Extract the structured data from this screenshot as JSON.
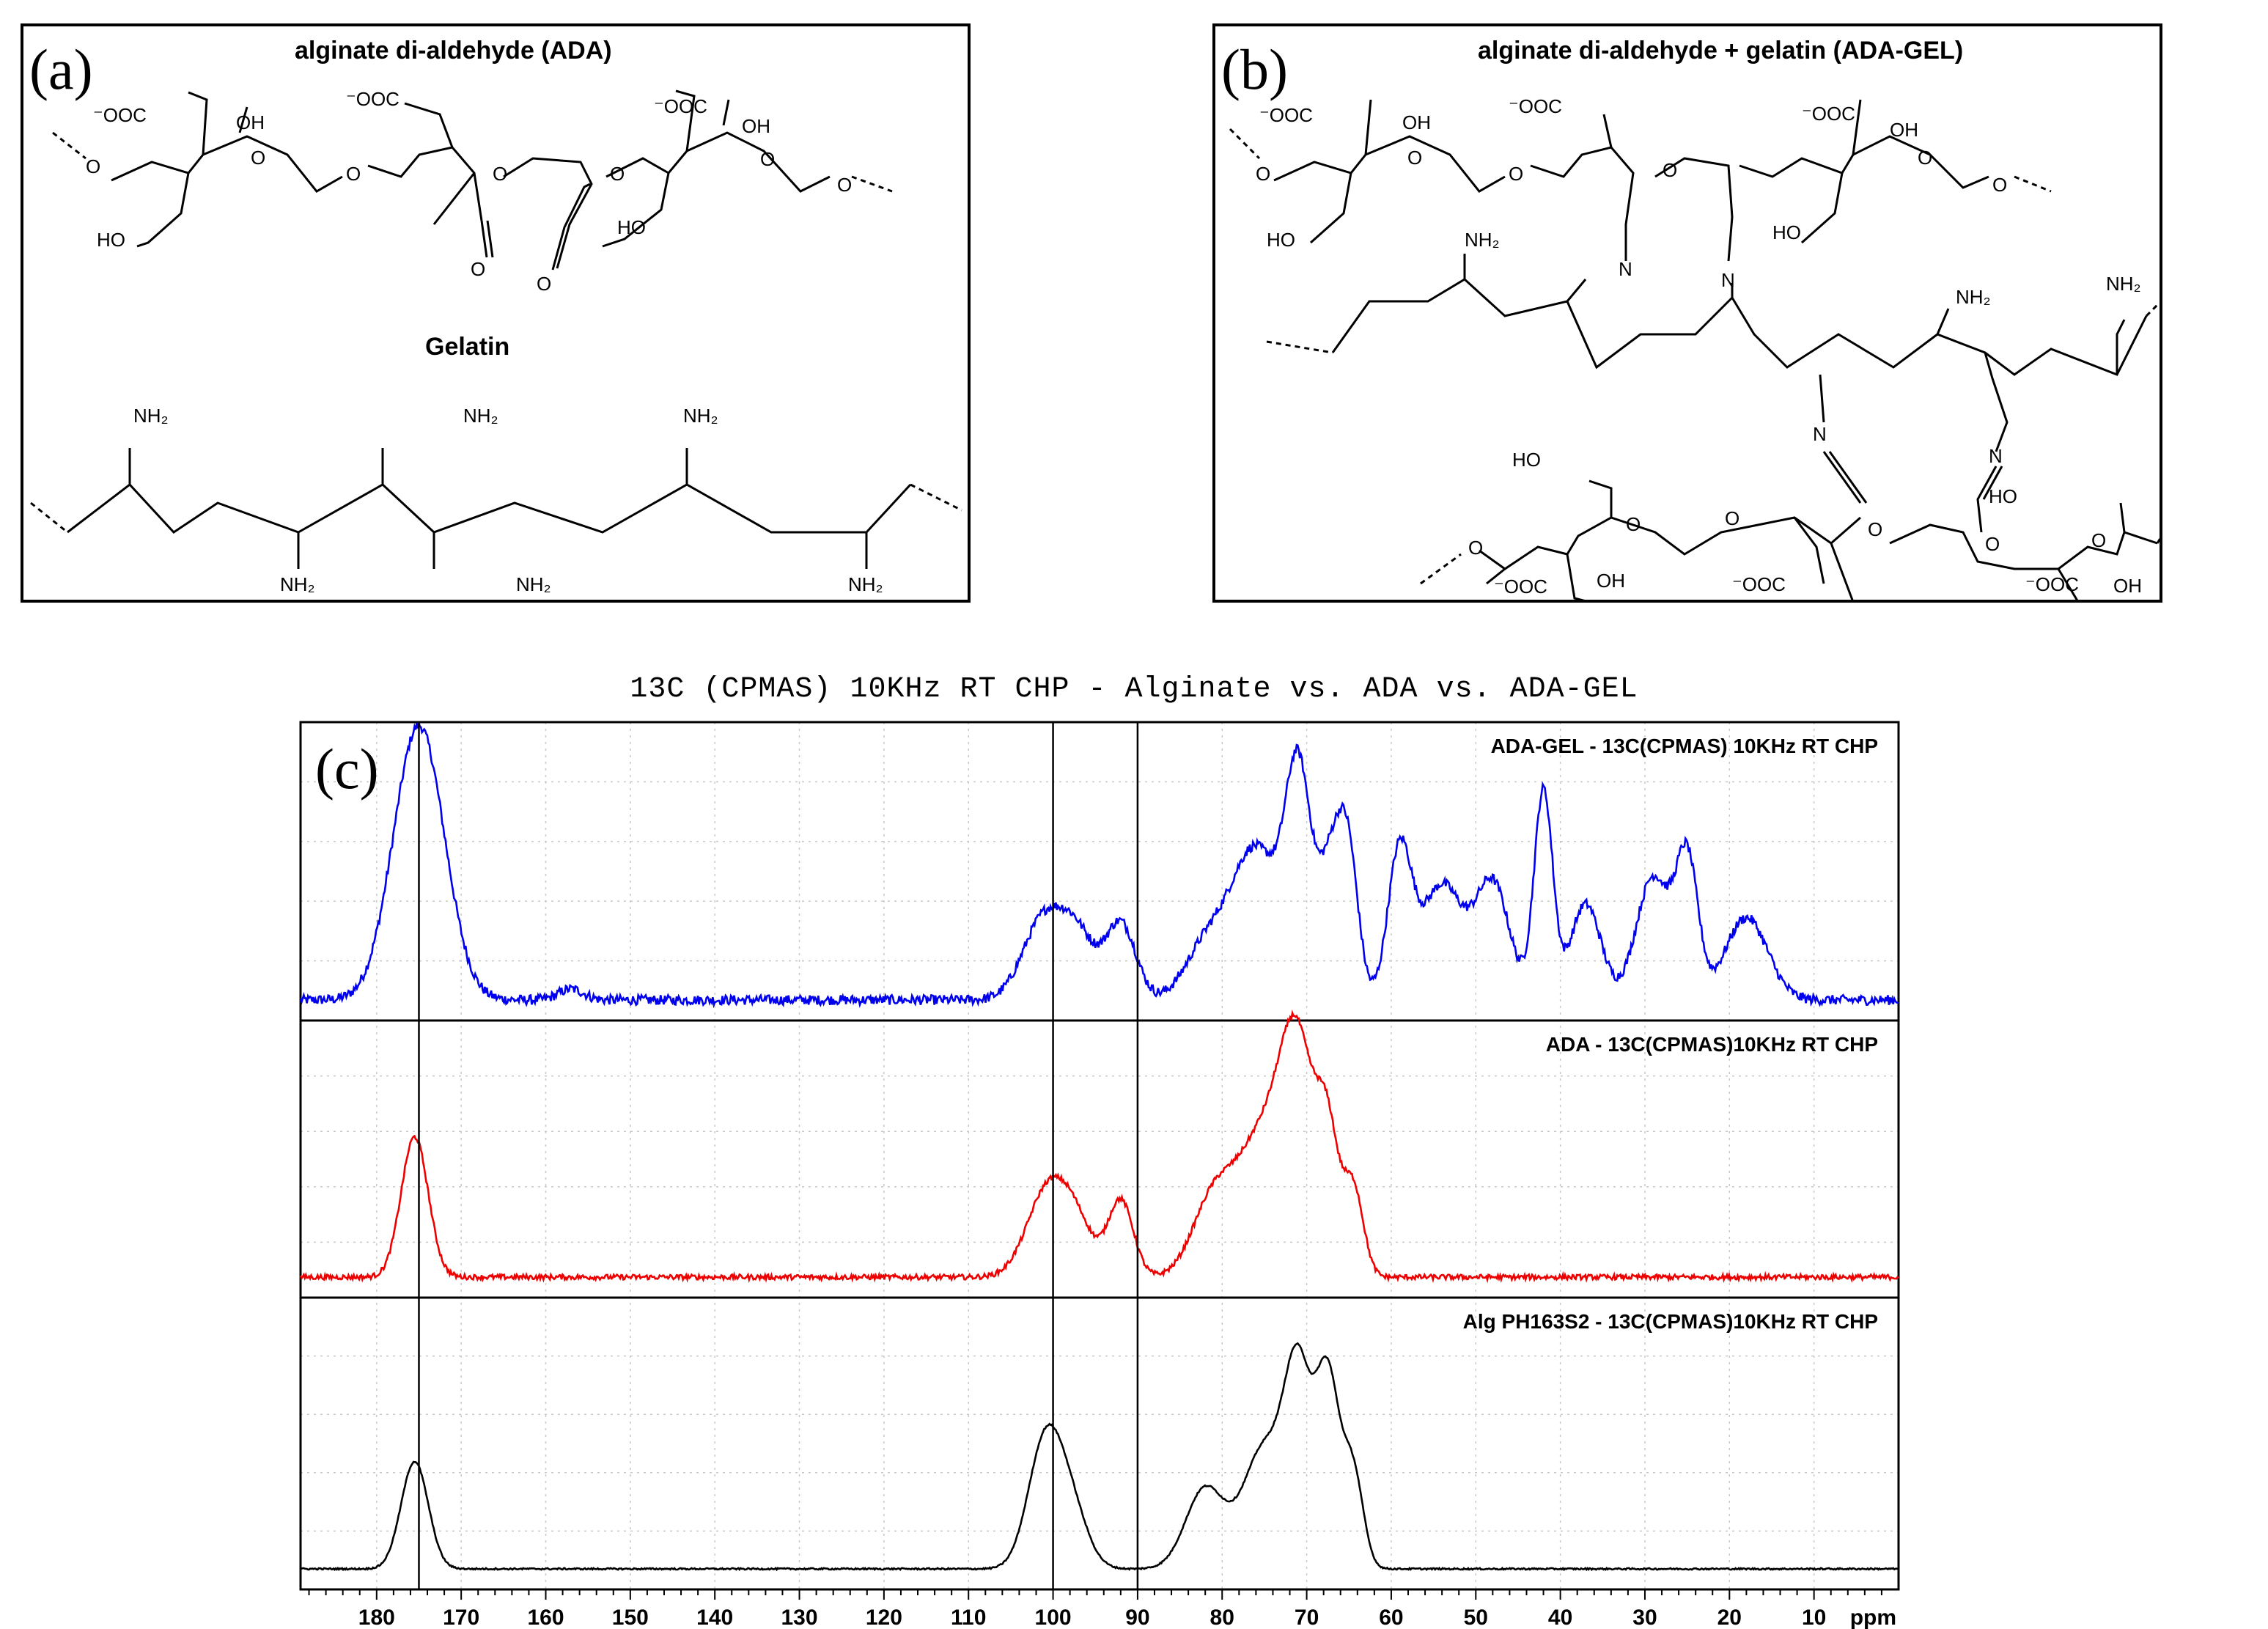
{
  "panels": {
    "a": {
      "letter": "(a)",
      "title": "alginate di-aldehyde (ADA)",
      "subtitle": "Gelatin",
      "labels": {
        "coo_1": "⁻OOC",
        "oh_1": "OH",
        "ring_o_1": "O",
        "o_link_1": "O",
        "ho_1": "HO",
        "o_link_2": "O",
        "coo_2": "⁻OOC",
        "o_link_3": "O",
        "ald_o_1": "O",
        "ald_o_2": "O",
        "o_link_4": "O",
        "coo_3": "⁻OOC",
        "oh_2": "OH",
        "ring_o_2": "O",
        "ho_2": "HO",
        "o_link_5": "O",
        "nh2_1": "NH₂",
        "nh2_2": "NH₂",
        "nh2_3": "NH₂",
        "nh2_4": "NH₂",
        "nh2_5": "NH₂",
        "nh2_6": "NH₂"
      }
    },
    "b": {
      "letter": "(b)",
      "title": "alginate di-aldehyde + gelatin (ADA-GEL)",
      "labels": {
        "coo_1": "⁻OOC",
        "oh_1": "OH",
        "ring_o_1": "O",
        "o_link_1": "O",
        "ho_1": "HO",
        "o_link_2": "O",
        "coo_2": "⁻OOC",
        "o_link_3": "O",
        "coo_3": "⁻OOC",
        "oh_2": "OH",
        "ring_o_2": "O",
        "o_link_4": "O",
        "ho_2": "HO",
        "n_1": "N",
        "n_2": "N",
        "nh2_1": "NH₂",
        "nh2_2": "NH₂",
        "nh2_3": "NH₂",
        "n_3": "N",
        "n_4": "N",
        "ho_3": "HO",
        "o_link_5": "O",
        "ring_o_3": "O",
        "o_link_6": "O",
        "coo_4": "⁻OOC",
        "oh_3": "OH",
        "o_link_7": "O",
        "coo_5": "⁻OOC",
        "o_link_8": "O",
        "ho_4": "HO",
        "ring_o_4": "O",
        "coo_6": "⁻OOC",
        "oh_4": "OH",
        "o_link_9": "O"
      }
    },
    "c": {
      "letter": "(c)"
    }
  },
  "chart_data": {
    "type": "line",
    "title": "13C (CPMAS) 10KHz RT CHP - Alginate vs. ADA vs. ADA-GEL",
    "xlabel": "ppm",
    "x_reversed": true,
    "xlim": [
      189,
      0
    ],
    "xticks": [
      180,
      170,
      160,
      150,
      140,
      130,
      120,
      110,
      100,
      90,
      80,
      70,
      60,
      50,
      40,
      30,
      20,
      10
    ],
    "reference_lines_ppm": [
      175,
      100,
      90
    ],
    "grid": true,
    "series": [
      {
        "name": "ADA-GEL - 13C(CPMAS) 10KHz RT CHP",
        "color": "#0000ee",
        "peaks": [
          [
            175,
            1.0,
            3
          ],
          [
            157,
            0.04,
            1.5
          ],
          [
            101,
            0.3,
            2.5
          ],
          [
            97,
            0.2,
            2
          ],
          [
            92,
            0.28,
            1.8
          ],
          [
            82,
            0.18,
            2.5
          ],
          [
            76,
            0.55,
            3
          ],
          [
            71,
            0.75,
            1.5
          ],
          [
            67,
            0.5,
            1.6
          ],
          [
            65,
            0.4,
            1.2
          ],
          [
            59,
            0.53,
            1.4
          ],
          [
            54,
            0.42,
            2.5
          ],
          [
            48,
            0.42,
            2
          ],
          [
            42,
            0.76,
            1.1
          ],
          [
            37,
            0.35,
            1.8
          ],
          [
            29,
            0.45,
            2
          ],
          [
            25,
            0.5,
            1.3
          ],
          [
            18,
            0.3,
            2.5
          ]
        ]
      },
      {
        "name": "ADA - 13C(CPMAS)10KHz RT CHP",
        "color": "#ee0000",
        "peaks": [
          [
            175.5,
            0.55,
            1.6
          ],
          [
            100.5,
            0.35,
            2.5
          ],
          [
            97,
            0.15,
            2
          ],
          [
            92,
            0.3,
            1.5
          ],
          [
            81,
            0.3,
            2.5
          ],
          [
            75,
            0.55,
            3
          ],
          [
            71,
            0.77,
            2
          ],
          [
            67.5,
            0.5,
            1.3
          ],
          [
            64.5,
            0.35,
            1.2
          ]
        ]
      },
      {
        "name": "Alg PH163S2 - 13C(CPMAS)10KHz RT CHP",
        "color": "#000000",
        "peaks": [
          [
            175.5,
            0.4,
            1.6
          ],
          [
            101,
            0.45,
            2
          ],
          [
            98,
            0.22,
            2
          ],
          [
            82,
            0.3,
            2.3
          ],
          [
            75,
            0.45,
            2.5
          ],
          [
            71,
            0.68,
            1.6
          ],
          [
            67.5,
            0.7,
            1.4
          ],
          [
            64.5,
            0.35,
            1.2
          ]
        ]
      }
    ]
  }
}
